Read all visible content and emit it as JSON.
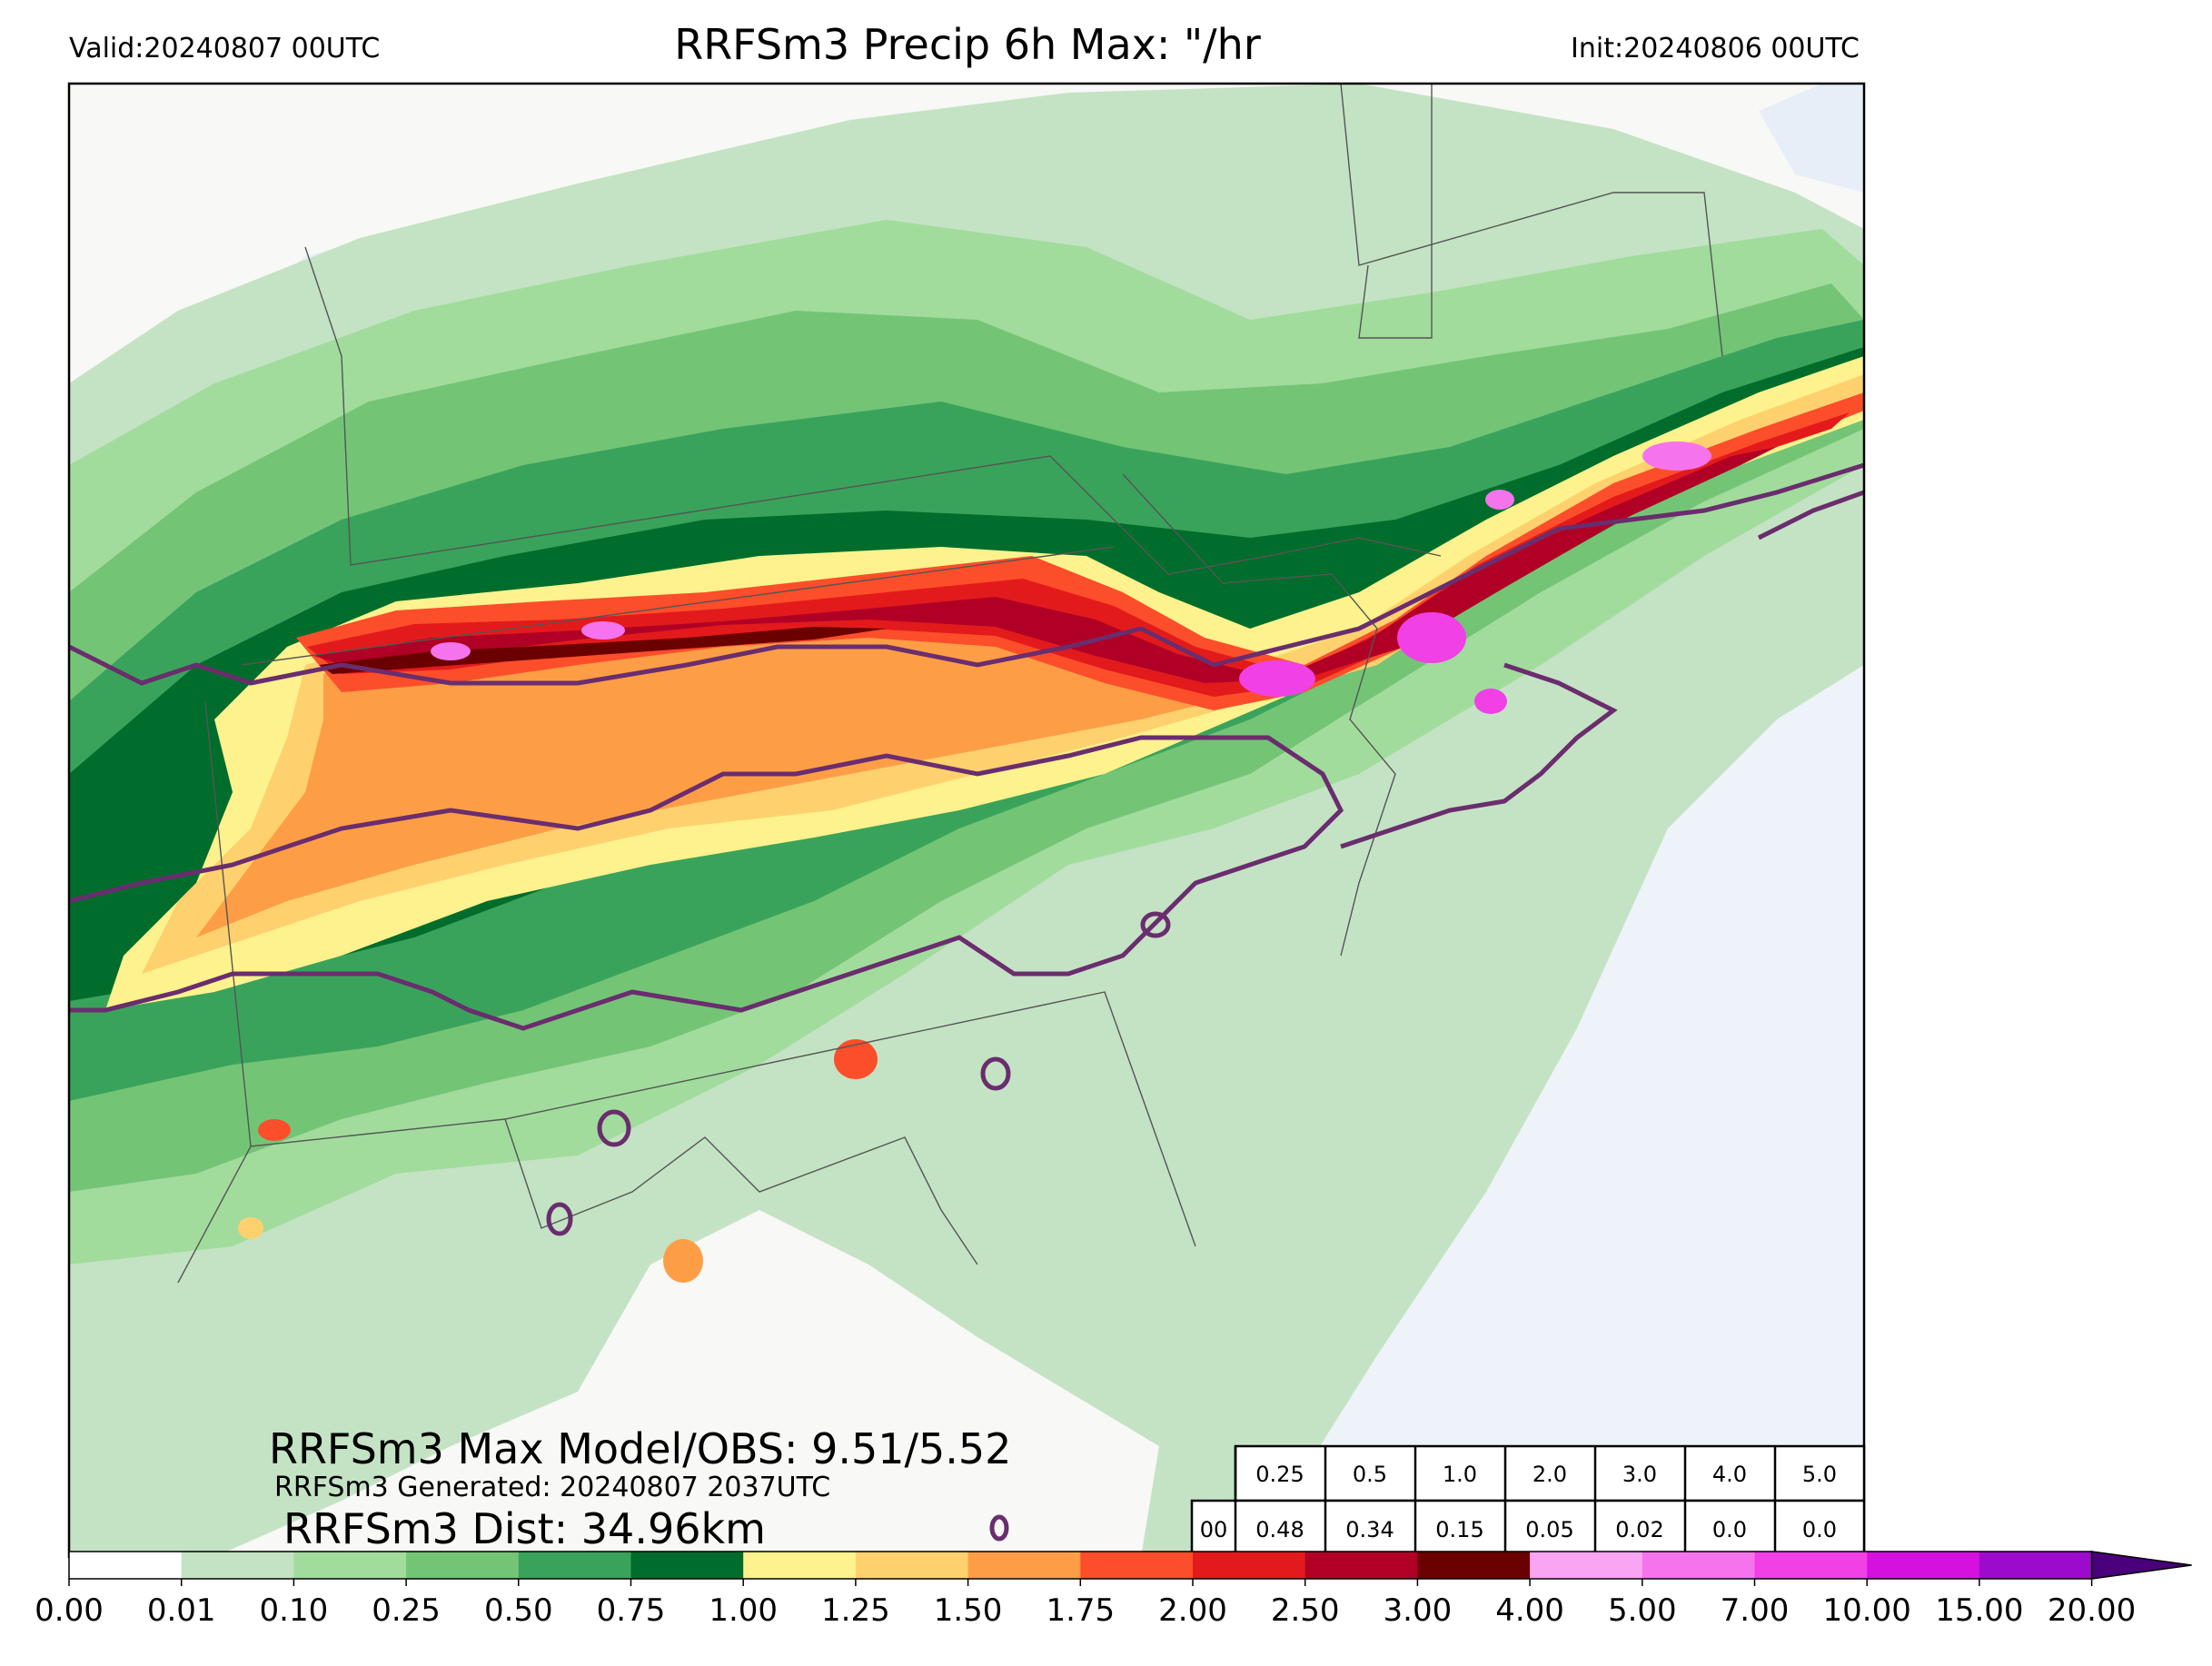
{
  "header": {
    "valid": "Valid:20240807 00UTC",
    "title": "RRFSm3 Precip 6h Max: \"/hr",
    "init": "Init:20240806 00UTC"
  },
  "stats": {
    "max_line": "RRFSm3 Max Model/OBS: 9.51/5.52",
    "generated": "RRFSm3 Generated: 20240807 2037UTC",
    "dist": "RRFSm3 Dist: 34.96km"
  },
  "threshold_table": {
    "thresholds": [
      "0.25",
      "0.5",
      "1.0",
      "2.0",
      "3.0",
      "4.0",
      "5.0"
    ],
    "row_label": "00",
    "values": [
      "0.48",
      "0.34",
      "0.15",
      "0.05",
      "0.02",
      "0.0",
      "0.0"
    ]
  },
  "colorbar": {
    "ticks": [
      "0.00",
      "0.01",
      "0.10",
      "0.25",
      "0.50",
      "0.75",
      "1.00",
      "1.25",
      "1.50",
      "1.75",
      "2.00",
      "2.50",
      "3.00",
      "4.00",
      "5.00",
      "7.00",
      "10.00",
      "15.00",
      "20.00"
    ],
    "colors": [
      "#ffffff",
      "#c4e3c4",
      "#a1dc9c",
      "#74c476",
      "#3aa35b",
      "#006d2c",
      "#fdf28d",
      "#fed16e",
      "#fd9e47",
      "#fc4e2a",
      "#e31a1c",
      "#b10026",
      "#6b0000",
      "#f9a5f3",
      "#f574ed",
      "#f040e6",
      "#d511e0",
      "#9c0bcc"
    ],
    "extend_color": "#4a007a"
  },
  "map_colors": {
    "land": "#f8f8f6",
    "water": "#eef3f9",
    "obs_contour": "#6a2d6e"
  }
}
